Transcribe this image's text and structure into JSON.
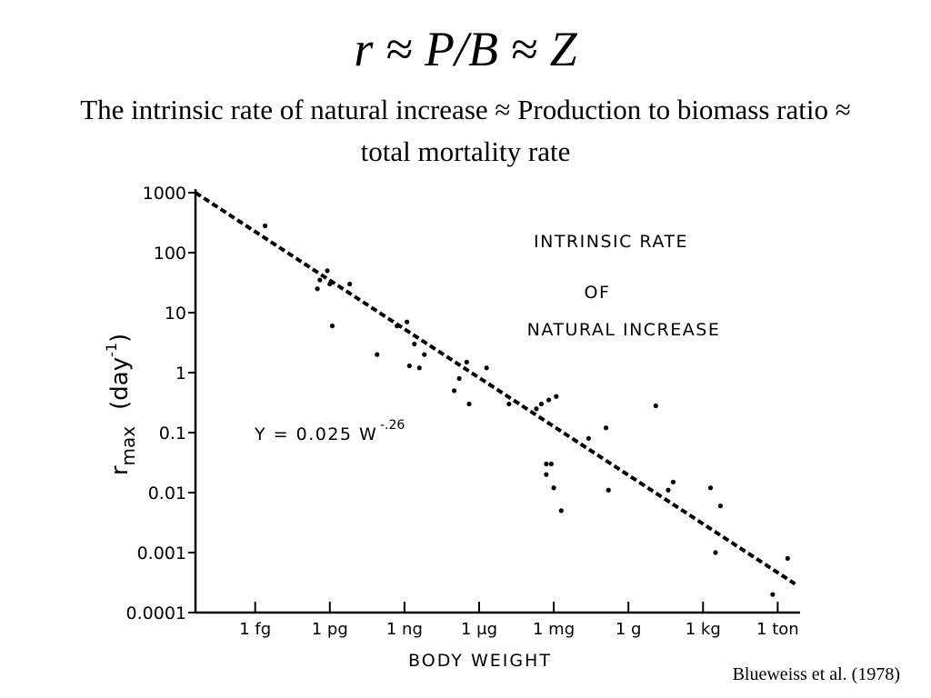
{
  "slide": {
    "title": "r ≈ P/B ≈ Z",
    "subtitle": "The intrinsic rate of natural increase ≈ Production to biomass ratio ≈ total mortality rate",
    "citation": "Blueweiss et al. (1978)"
  },
  "chart_data": {
    "type": "scatter",
    "title_lines": [
      "INTRINSIC  RATE",
      "OF",
      "NATURAL  INCREASE"
    ],
    "xlabel": "BODY  WEIGHT",
    "ylabel_main": "r",
    "ylabel_sub": "max",
    "ylabel_unit": "(day",
    "ylabel_exp": "-1",
    "ylabel_close": ")",
    "y_scale": "log",
    "ylim": [
      0.0001,
      1000
    ],
    "y_ticks": [
      {
        "value": 1000,
        "label": "1000"
      },
      {
        "value": 100,
        "label": "100"
      },
      {
        "value": 10,
        "label": "10"
      },
      {
        "value": 1,
        "label": "1"
      },
      {
        "value": 0.1,
        "label": "0.1"
      },
      {
        "value": 0.01,
        "label": "0.01"
      },
      {
        "value": 0.001,
        "label": "0.001"
      },
      {
        "value": 0.0001,
        "label": "0.0001"
      }
    ],
    "x_scale": "log",
    "x_unit": "log10 grams",
    "xlim": [
      -17.4,
      6.9
    ],
    "x_ticks": [
      {
        "value": -15,
        "label": "1 fg"
      },
      {
        "value": -12,
        "label": "1 pg"
      },
      {
        "value": -9,
        "label": "1 ng"
      },
      {
        "value": -6,
        "label": "1 μg"
      },
      {
        "value": -3,
        "label": "1 mg"
      },
      {
        "value": 0,
        "label": "1 g"
      },
      {
        "value": 3,
        "label": "1 kg"
      },
      {
        "value": 6,
        "label": "1 ton"
      }
    ],
    "equation_text": "Y = 0.025 W",
    "equation_exp": "-.26",
    "fit_line": {
      "style": "dashed",
      "x": [
        -17.4,
        6.7
      ],
      "y": [
        1000,
        0.0003
      ]
    },
    "points": [
      {
        "x": -14.6,
        "y": 280
      },
      {
        "x": -12.4,
        "y": 35
      },
      {
        "x": -12.1,
        "y": 50
      },
      {
        "x": -12.0,
        "y": 30
      },
      {
        "x": -12.5,
        "y": 25
      },
      {
        "x": -11.9,
        "y": 6
      },
      {
        "x": -11.2,
        "y": 30
      },
      {
        "x": -10.1,
        "y": 2
      },
      {
        "x": -9.3,
        "y": 6
      },
      {
        "x": -8.9,
        "y": 7
      },
      {
        "x": -8.6,
        "y": 3
      },
      {
        "x": -8.8,
        "y": 1.3
      },
      {
        "x": -8.4,
        "y": 1.2
      },
      {
        "x": -8.2,
        "y": 2
      },
      {
        "x": -7.0,
        "y": 0.5
      },
      {
        "x": -6.8,
        "y": 0.8
      },
      {
        "x": -6.5,
        "y": 1.5
      },
      {
        "x": -6.4,
        "y": 0.3
      },
      {
        "x": -5.7,
        "y": 1.2
      },
      {
        "x": -4.8,
        "y": 0.3
      },
      {
        "x": -3.7,
        "y": 0.25
      },
      {
        "x": -3.5,
        "y": 0.3
      },
      {
        "x": -3.2,
        "y": 0.35
      },
      {
        "x": -2.9,
        "y": 0.4
      },
      {
        "x": -3.3,
        "y": 0.03
      },
      {
        "x": -3.1,
        "y": 0.03
      },
      {
        "x": -3.0,
        "y": 0.012
      },
      {
        "x": -3.3,
        "y": 0.02
      },
      {
        "x": -2.7,
        "y": 0.005
      },
      {
        "x": -1.6,
        "y": 0.08
      },
      {
        "x": -0.9,
        "y": 0.12
      },
      {
        "x": -0.8,
        "y": 0.011
      },
      {
        "x": 1.1,
        "y": 0.28
      },
      {
        "x": 1.6,
        "y": 0.011
      },
      {
        "x": 1.8,
        "y": 0.015
      },
      {
        "x": 3.3,
        "y": 0.012
      },
      {
        "x": 3.5,
        "y": 0.001
      },
      {
        "x": 3.7,
        "y": 0.006
      },
      {
        "x": 5.8,
        "y": 0.0002
      },
      {
        "x": 6.4,
        "y": 0.0008
      }
    ]
  }
}
